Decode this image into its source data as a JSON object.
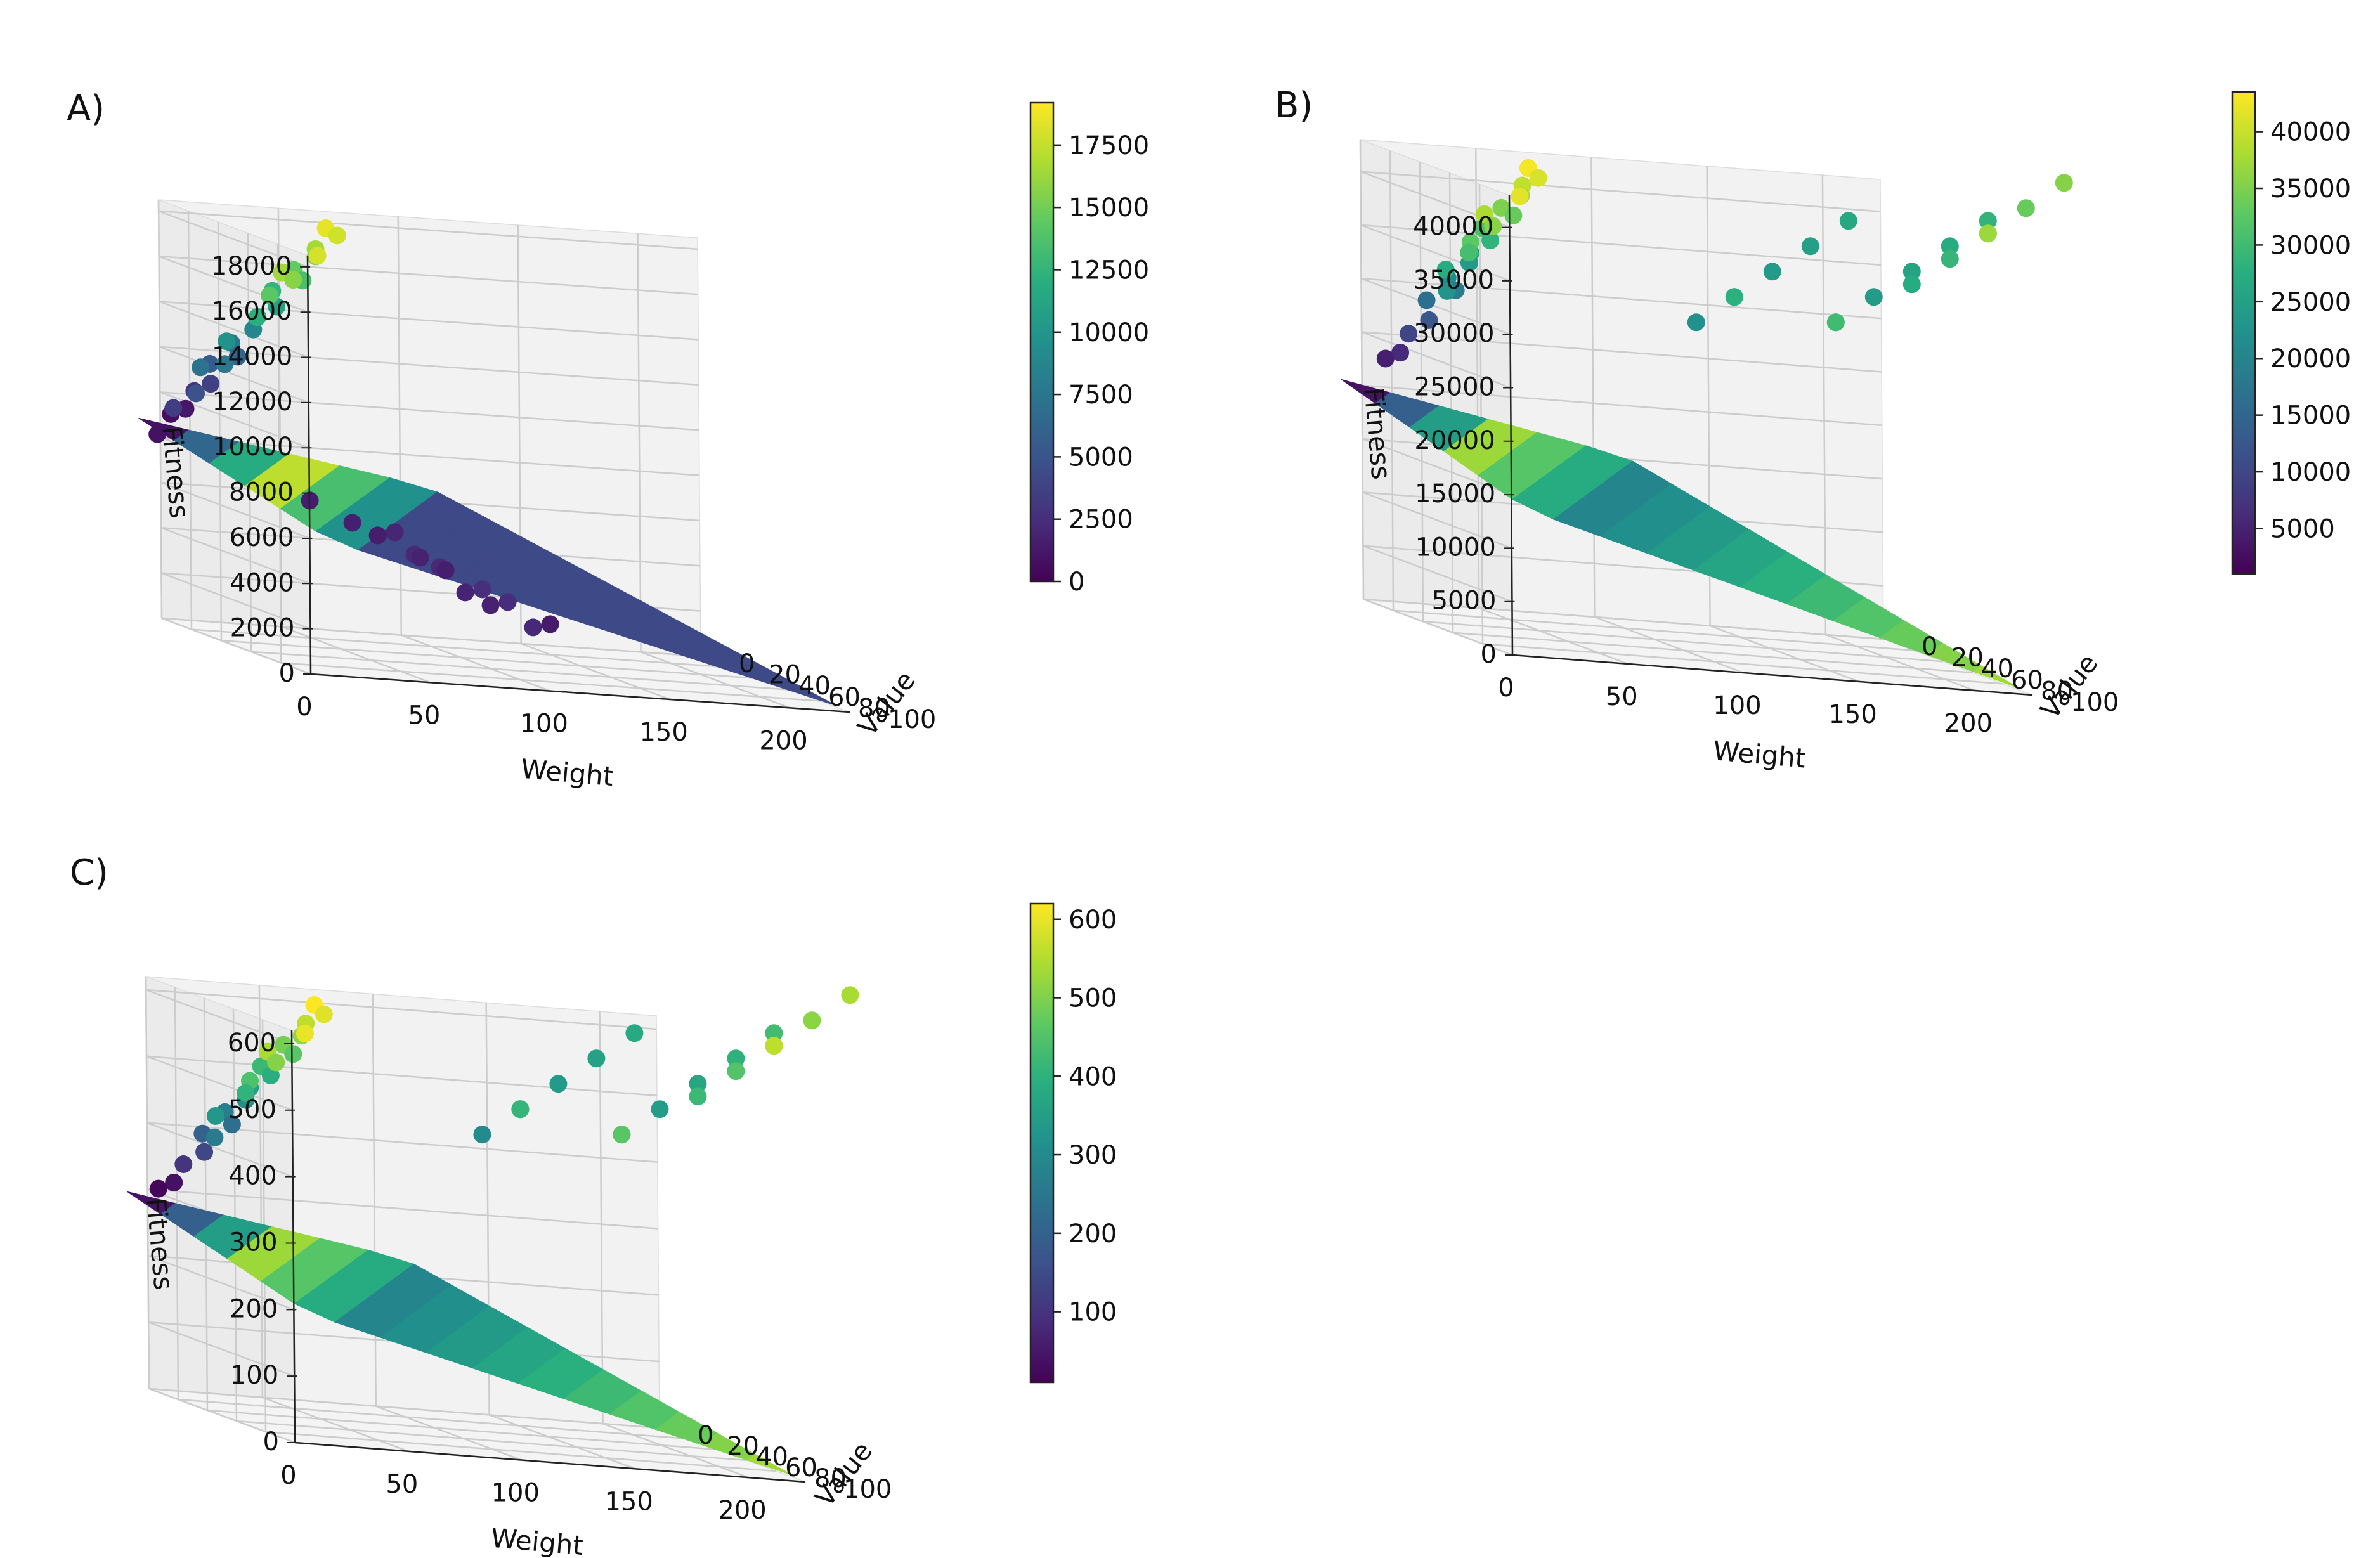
{
  "figure": {
    "panels": [
      {
        "id": "A",
        "label": "A)"
      },
      {
        "id": "B",
        "label": "B)"
      },
      {
        "id": "C",
        "label": "C)"
      }
    ]
  },
  "chart_data": [
    {
      "type": "scatter",
      "panel_label": "A)",
      "surface": "triangular surface under the points",
      "grid": true,
      "colormap": "viridis",
      "xlabel": "Weight",
      "ylabel": "Value",
      "zlabel": "Fitness",
      "x_ticks": [
        "0",
        "50",
        "100",
        "150",
        "200"
      ],
      "y_ticks": [
        "0",
        "20",
        "40",
        "60",
        "80",
        "100"
      ],
      "z_ticks": [
        "0",
        "2000",
        "4000",
        "6000",
        "8000",
        "10000",
        "12000",
        "14000",
        "16000",
        "18000"
      ],
      "xlim": [
        0,
        225
      ],
      "ylim": [
        0,
        100
      ],
      "zlim": [
        0,
        18500
      ],
      "colorbar": {
        "min": 0,
        "max": 19200,
        "ticks": [
          "0",
          "2500",
          "5000",
          "7500",
          "10000",
          "12500",
          "15000",
          "17500"
        ]
      },
      "upper_arm": [
        [
          100,
          0,
          18500
        ],
        [
          100,
          0,
          17800
        ],
        [
          100,
          0,
          16500
        ],
        [
          100,
          0,
          15800
        ],
        [
          100,
          0,
          14500
        ],
        [
          100,
          0,
          13500
        ],
        [
          100,
          0,
          12500
        ],
        [
          100,
          0,
          11000
        ],
        [
          100,
          0,
          10000
        ],
        [
          100,
          0,
          8800
        ],
        [
          100,
          0,
          7500
        ],
        [
          100,
          0,
          6200
        ],
        [
          100,
          0,
          5500
        ],
        [
          100,
          0,
          3600
        ],
        [
          100,
          0,
          2900
        ],
        [
          100,
          0,
          1200
        ],
        [
          100,
          0,
          700
        ],
        [
          100,
          0,
          18000
        ],
        [
          100,
          0,
          16400
        ],
        [
          100,
          0,
          15700
        ],
        [
          100,
          0,
          14200
        ],
        [
          100,
          0,
          12100
        ],
        [
          100,
          0,
          9800
        ],
        [
          100,
          0,
          7600
        ],
        [
          100,
          0,
          7300
        ],
        [
          100,
          0,
          4800
        ],
        [
          100,
          0,
          3400
        ],
        [
          100,
          0,
          900
        ]
      ],
      "lower_cloud": [
        [
          150,
          0,
          1500
        ],
        [
          150,
          0,
          1700
        ],
        [
          150,
          0,
          2000
        ],
        [
          150,
          0,
          2200
        ],
        [
          175,
          0,
          1500
        ],
        [
          175,
          0,
          1800
        ],
        [
          175,
          0,
          2200
        ],
        [
          175,
          0,
          2500
        ],
        [
          200,
          0,
          1600
        ],
        [
          200,
          0,
          1900
        ],
        [
          200,
          0,
          2400
        ],
        [
          225,
          0,
          1400
        ],
        [
          225,
          0,
          1800
        ],
        [
          225,
          0,
          2200
        ]
      ]
    },
    {
      "type": "scatter",
      "panel_label": "B)",
      "surface": "triangular surface under the points",
      "grid": true,
      "colormap": "viridis",
      "xlabel": "Weight",
      "ylabel": "Value",
      "zlabel": "Fitness",
      "x_ticks": [
        "0",
        "50",
        "100",
        "150",
        "200"
      ],
      "y_ticks": [
        "0",
        "20",
        "40",
        "60",
        "80",
        "100"
      ],
      "z_ticks": [
        "0",
        "5000",
        "10000",
        "15000",
        "20000",
        "25000",
        "30000",
        "35000",
        "40000"
      ],
      "xlim": [
        0,
        225
      ],
      "ylim": [
        0,
        100
      ],
      "zlim": [
        0,
        43000
      ],
      "colorbar": {
        "min": 1000,
        "max": 43500,
        "ticks": [
          "5000",
          "10000",
          "15000",
          "20000",
          "25000",
          "30000",
          "35000",
          "40000"
        ]
      },
      "upper_arm": [
        [
          100,
          0,
          43000
        ],
        [
          100,
          0,
          41000
        ],
        [
          100,
          0,
          39500
        ],
        [
          100,
          0,
          37500
        ],
        [
          100,
          0,
          35000
        ],
        [
          100,
          0,
          33500
        ],
        [
          100,
          0,
          31000
        ],
        [
          100,
          0,
          28500
        ],
        [
          100,
          0,
          26000
        ],
        [
          100,
          0,
          24000
        ],
        [
          100,
          0,
          21000
        ],
        [
          100,
          0,
          18500
        ],
        [
          100,
          0,
          16500
        ],
        [
          100,
          0,
          12500
        ],
        [
          100,
          0,
          9800
        ],
        [
          100,
          0,
          6000
        ],
        [
          100,
          0,
          4800
        ],
        [
          100,
          0,
          41800
        ],
        [
          100,
          0,
          38200
        ],
        [
          100,
          0,
          35800
        ],
        [
          100,
          0,
          32600
        ],
        [
          100,
          0,
          30500
        ],
        [
          100,
          0,
          27100
        ],
        [
          100,
          0,
          22800
        ]
      ],
      "right_arm": [
        [
          175,
          0,
          22000
        ],
        [
          175,
          0,
          23000
        ],
        [
          175,
          0,
          24000
        ],
        [
          175,
          0,
          25000
        ],
        [
          175,
          0,
          26500
        ],
        [
          200,
          0,
          22500
        ],
        [
          200,
          0,
          24000
        ],
        [
          200,
          0,
          25500
        ],
        [
          200,
          0,
          27000
        ],
        [
          200,
          0,
          28500
        ],
        [
          225,
          0,
          27000
        ],
        [
          225,
          0,
          29000
        ],
        [
          225,
          0,
          31500
        ],
        [
          225,
          0,
          33500
        ],
        [
          225,
          0,
          35500
        ],
        [
          200,
          0,
          30000
        ],
        [
          175,
          0,
          28000
        ],
        [
          225,
          0,
          37000
        ]
      ]
    },
    {
      "type": "scatter",
      "panel_label": "C)",
      "surface": "triangular surface under the points",
      "grid": true,
      "colormap": "viridis",
      "xlabel": "Weight",
      "ylabel": "Value",
      "zlabel": "Fitness",
      "x_ticks": [
        "0",
        "50",
        "100",
        "150",
        "200"
      ],
      "y_ticks": [
        "0",
        "20",
        "40",
        "60",
        "80",
        "100"
      ],
      "z_ticks": [
        "0",
        "100",
        "200",
        "300",
        "400",
        "500",
        "600"
      ],
      "xlim": [
        0,
        225
      ],
      "ylim": [
        0,
        100
      ],
      "zlim": [
        0,
        620
      ],
      "colorbar": {
        "min": 10,
        "max": 620,
        "ticks": [
          "100",
          "200",
          "300",
          "400",
          "500",
          "600"
        ]
      },
      "upper_arm": [
        [
          100,
          0,
          620
        ],
        [
          100,
          0,
          590
        ],
        [
          100,
          0,
          560
        ],
        [
          100,
          0,
          520
        ],
        [
          100,
          0,
          490
        ],
        [
          100,
          0,
          460
        ],
        [
          100,
          0,
          420
        ],
        [
          100,
          0,
          390
        ],
        [
          100,
          0,
          350
        ],
        [
          100,
          0,
          310
        ],
        [
          100,
          0,
          270
        ],
        [
          100,
          0,
          230
        ],
        [
          100,
          0,
          200
        ],
        [
          100,
          0,
          140
        ],
        [
          100,
          0,
          100
        ],
        [
          100,
          0,
          40
        ],
        [
          100,
          0,
          20
        ],
        [
          100,
          0,
          600
        ],
        [
          100,
          0,
          540
        ],
        [
          100,
          0,
          505
        ],
        [
          100,
          0,
          445
        ],
        [
          100,
          0,
          405
        ],
        [
          100,
          0,
          330
        ],
        [
          100,
          0,
          260
        ]
      ],
      "right_arm": [
        [
          175,
          0,
          300
        ],
        [
          175,
          0,
          320
        ],
        [
          175,
          0,
          340
        ],
        [
          175,
          0,
          360
        ],
        [
          175,
          0,
          380
        ],
        [
          200,
          0,
          320
        ],
        [
          200,
          0,
          345
        ],
        [
          200,
          0,
          370
        ],
        [
          200,
          0,
          400
        ],
        [
          200,
          0,
          430
        ],
        [
          225,
          0,
          420
        ],
        [
          225,
          0,
          450
        ],
        [
          225,
          0,
          480
        ],
        [
          225,
          0,
          510
        ],
        [
          225,
          0,
          540
        ],
        [
          200,
          0,
          460
        ],
        [
          175,
          0,
          410
        ],
        [
          225,
          0,
          560
        ]
      ]
    }
  ]
}
